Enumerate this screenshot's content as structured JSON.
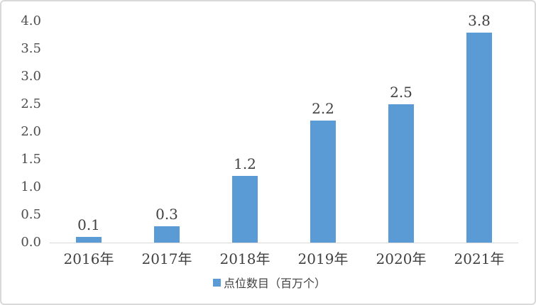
{
  "chart": {
    "background_color": "#FFFFFF",
    "frame_border_color": "#D9D9D9",
    "bar_color": "#5B9BD5",
    "axis_line_color": "#D9D9D9",
    "data_label_color": "#404040",
    "tick_label_color": "#4D4D4D"
  },
  "chart_data": {
    "type": "bar",
    "title": "",
    "xlabel": "",
    "ylabel": "",
    "categories": [
      "2016年",
      "2017年",
      "2018年",
      "2019年",
      "2020年",
      "2021年"
    ],
    "series": [
      {
        "name": "点位数目（百万个）",
        "values": [
          0.1,
          0.3,
          1.2,
          2.2,
          2.5,
          3.8
        ],
        "color": "#5B9BD5"
      }
    ],
    "data_labels": [
      "0.1",
      "0.3",
      "1.2",
      "2.2",
      "2.5",
      "3.8"
    ],
    "ylim": [
      0,
      4.0
    ],
    "ytick_step": 0.5,
    "yticks": [
      "0.0",
      "0.5",
      "1.0",
      "1.5",
      "2.0",
      "2.5",
      "3.0",
      "3.5",
      "4.0"
    ],
    "grid": false,
    "legend": {
      "label": "点位数目（百万个）",
      "position": "bottom",
      "marker_color": "#5B9BD5"
    }
  }
}
